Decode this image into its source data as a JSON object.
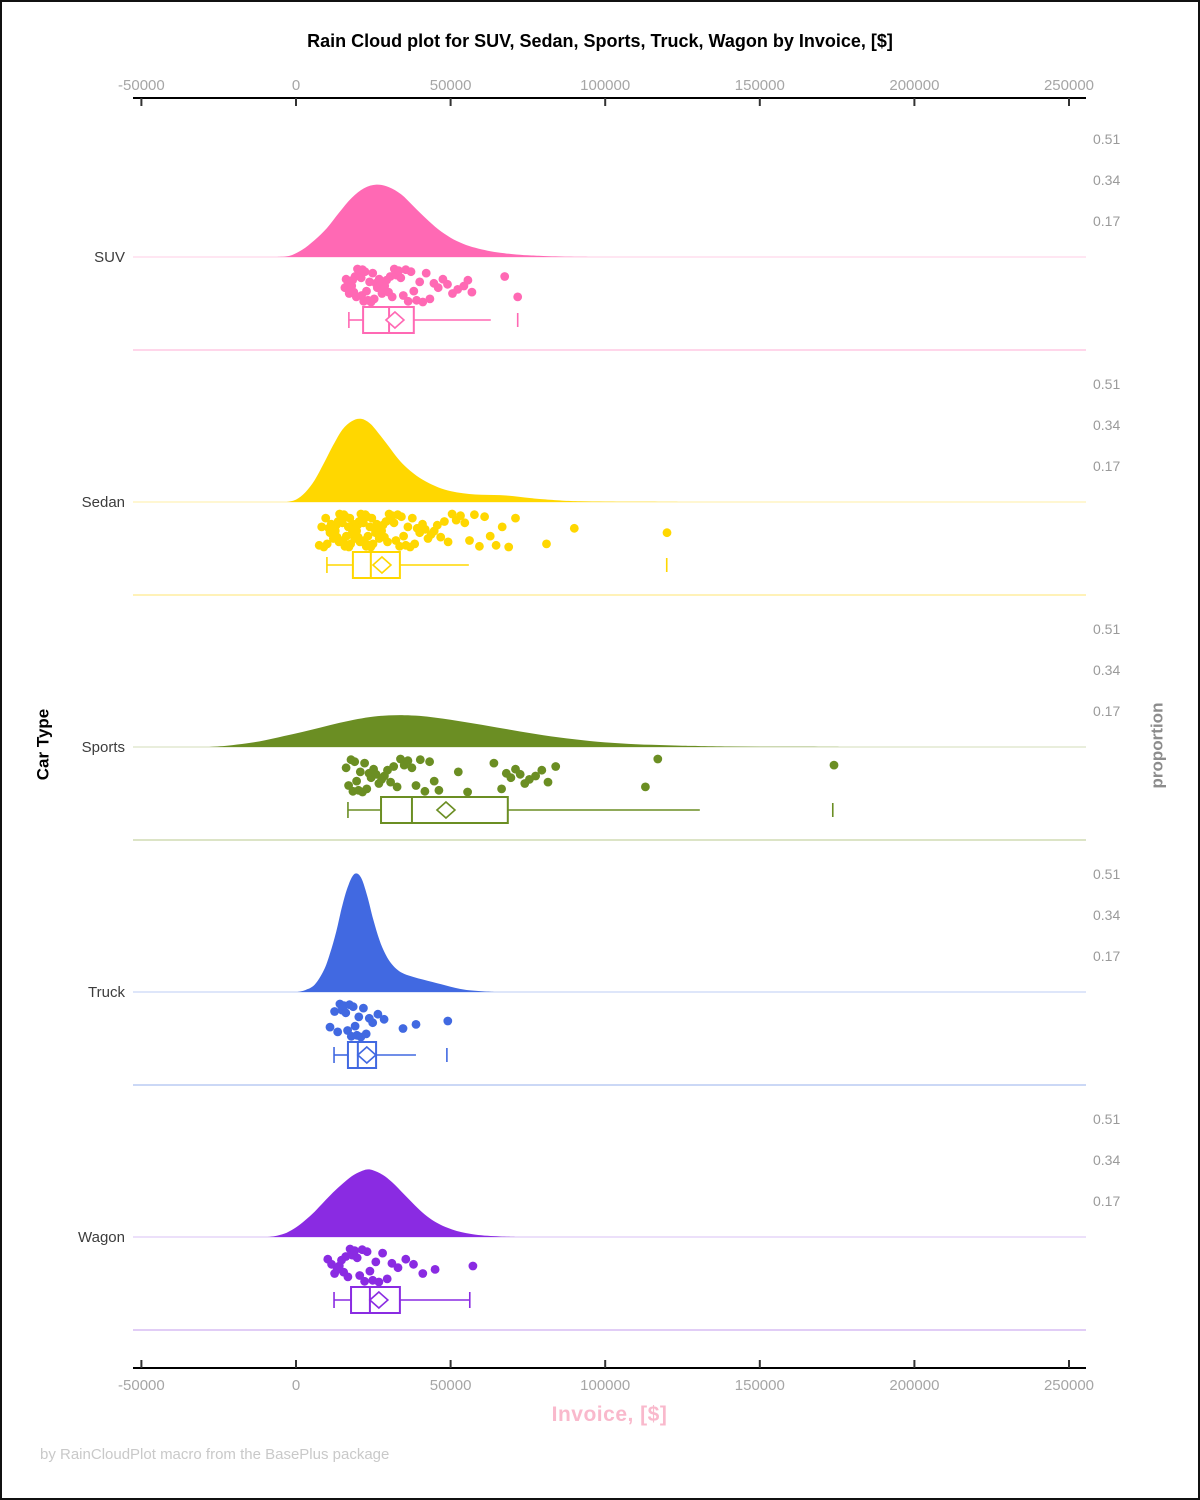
{
  "title": "Rain Cloud plot for SUV, Sedan, Sports, Truck, Wagon by Invoice, [$]",
  "footer": "by RainCloudPlot macro from the BasePlus package",
  "x_axis": {
    "label": "Invoice, [$]",
    "label_color": "#F9B9CC",
    "tick_values": [
      -50000,
      0,
      50000,
      100000,
      150000,
      200000,
      250000
    ]
  },
  "y_axis_left": {
    "label": "Car Type"
  },
  "y_axis_right": {
    "label": "proportion",
    "tick_values": [
      0.51,
      0.34,
      0.17
    ]
  },
  "chart_data": {
    "type": "raincloud (half-violin density + jittered strip + box plot per category)",
    "xlabel": "Invoice, [$]",
    "ylabel": "Car Type",
    "y2label": "proportion",
    "xlim": [
      -52700,
      255600
    ],
    "categories": [
      "SUV",
      "Sedan",
      "Sports",
      "Truck",
      "Wagon"
    ],
    "proportion_ticks_per_group": [
      0.51,
      0.34,
      0.17
    ],
    "jitter_pattern": [
      0.55,
      0.08,
      0.82,
      0.3,
      0.65,
      0.0,
      0.45,
      0.92,
      0.18,
      0.72,
      0.38,
      0.05,
      0.6,
      0.97,
      0.26,
      0.5,
      0.12,
      0.78,
      0.33,
      0.88,
      0.02,
      0.68,
      0.42,
      0.95,
      0.22
    ],
    "groups": [
      {
        "name": "SUV",
        "color": "#FF69B4",
        "tint": "#FFD6EA",
        "density": [
          [
            -6000,
            0
          ],
          [
            -2000,
            0.005
          ],
          [
            2000,
            0.03
          ],
          [
            6000,
            0.07
          ],
          [
            10000,
            0.12
          ],
          [
            14000,
            0.185
          ],
          [
            18000,
            0.245
          ],
          [
            22000,
            0.285
          ],
          [
            26000,
            0.3
          ],
          [
            30000,
            0.29
          ],
          [
            34000,
            0.26
          ],
          [
            38000,
            0.21
          ],
          [
            42000,
            0.16
          ],
          [
            46000,
            0.115
          ],
          [
            50000,
            0.08
          ],
          [
            54000,
            0.055
          ],
          [
            58000,
            0.038
          ],
          [
            62000,
            0.026
          ],
          [
            66000,
            0.018
          ],
          [
            70000,
            0.012
          ],
          [
            75000,
            0.007
          ],
          [
            80000,
            0.004
          ],
          [
            88000,
            0.001
          ],
          [
            95000,
            0
          ]
        ],
        "box": {
          "whisker_low": 17100,
          "q1": 21700,
          "median": 30100,
          "q3": 38100,
          "whisker_high": 63000,
          "mean": 32000,
          "outlier_ticks": [
            71700
          ],
          "right_cap": false
        },
        "points_x": [
          15800,
          16200,
          16800,
          17200,
          17600,
          18000,
          18300,
          18700,
          19100,
          19500,
          19900,
          20300,
          20700,
          21100,
          21200,
          21500,
          21900,
          22300,
          22800,
          23300,
          23800,
          24300,
          24800,
          25300,
          25800,
          26300,
          26900,
          27500,
          27800,
          28100,
          28700,
          29300,
          29900,
          30500,
          31100,
          31800,
          32500,
          33200,
          33900,
          34700,
          35500,
          36300,
          37200,
          38100,
          39000,
          40000,
          41000,
          42100,
          43300,
          44600,
          46000,
          47500,
          49000,
          50600,
          52300,
          54300,
          55600,
          56900,
          67500,
          71700
        ]
      },
      {
        "name": "Sedan",
        "color": "#FFD700",
        "tint": "#FFF2B8",
        "density": [
          [
            -3000,
            0
          ],
          [
            0,
            0.01
          ],
          [
            3000,
            0.04
          ],
          [
            6000,
            0.09
          ],
          [
            9000,
            0.16
          ],
          [
            12000,
            0.235
          ],
          [
            15000,
            0.3
          ],
          [
            18000,
            0.335
          ],
          [
            21000,
            0.345
          ],
          [
            24000,
            0.325
          ],
          [
            27000,
            0.28
          ],
          [
            30000,
            0.23
          ],
          [
            33000,
            0.18
          ],
          [
            36000,
            0.14
          ],
          [
            40000,
            0.1
          ],
          [
            44000,
            0.072
          ],
          [
            48000,
            0.052
          ],
          [
            52000,
            0.04
          ],
          [
            56000,
            0.033
          ],
          [
            60000,
            0.03
          ],
          [
            64000,
            0.029
          ],
          [
            68000,
            0.027
          ],
          [
            72000,
            0.022
          ],
          [
            76000,
            0.016
          ],
          [
            80000,
            0.011
          ],
          [
            86000,
            0.006
          ],
          [
            92000,
            0.003
          ],
          [
            100000,
            0.0015
          ],
          [
            110000,
            0.001
          ],
          [
            118000,
            0.0005
          ],
          [
            126000,
            0
          ]
        ],
        "box": {
          "whisker_low": 10000,
          "q1": 18400,
          "median": 24200,
          "q3": 33600,
          "whisker_high": 55900,
          "mean": 27800,
          "outlier_ticks": [
            119900
          ],
          "right_cap": false
        },
        "points_x": [
          7500,
          8300,
          9000,
          9600,
          10100,
          10600,
          11000,
          11400,
          11800,
          12100,
          12400,
          12700,
          13000,
          13300,
          13600,
          13900,
          14100,
          14400,
          14700,
          15000,
          15200,
          15500,
          15800,
          16000,
          16300,
          16600,
          16900,
          17100,
          17400,
          17700,
          18000,
          18200,
          18500,
          18800,
          19000,
          19300,
          19600,
          19900,
          20100,
          20400,
          20700,
          21000,
          21200,
          21500,
          21800,
          22100,
          22400,
          22700,
          23000,
          23300,
          23600,
          23900,
          24200,
          24500,
          24900,
          25300,
          25700,
          26100,
          26500,
          26900,
          27300,
          27700,
          28100,
          28600,
          29100,
          29600,
          30100,
          30600,
          31100,
          31700,
          32300,
          32900,
          33500,
          34100,
          34800,
          35500,
          36200,
          36900,
          37600,
          38400,
          39200,
          40000,
          40900,
          41800,
          42700,
          43700,
          44700,
          45700,
          46800,
          48000,
          49200,
          50500,
          51800,
          53200,
          54600,
          56100,
          57700,
          59300,
          61000,
          62800,
          64700,
          66700,
          68800,
          71000,
          81000,
          90000,
          120000
        ]
      },
      {
        "name": "Sports",
        "color": "#6B8E23",
        "tint": "#DCE4C6",
        "density": [
          [
            -28000,
            0
          ],
          [
            -22000,
            0.006
          ],
          [
            -16000,
            0.015
          ],
          [
            -10000,
            0.028
          ],
          [
            -4000,
            0.045
          ],
          [
            2000,
            0.062
          ],
          [
            8000,
            0.081
          ],
          [
            14000,
            0.1
          ],
          [
            20000,
            0.116
          ],
          [
            25000,
            0.126
          ],
          [
            30000,
            0.131
          ],
          [
            35000,
            0.132
          ],
          [
            40000,
            0.129
          ],
          [
            45000,
            0.122
          ],
          [
            50000,
            0.113
          ],
          [
            55000,
            0.103
          ],
          [
            60000,
            0.092
          ],
          [
            65000,
            0.081
          ],
          [
            70000,
            0.07
          ],
          [
            75000,
            0.059
          ],
          [
            80000,
            0.049
          ],
          [
            85000,
            0.04
          ],
          [
            90000,
            0.032
          ],
          [
            95000,
            0.025
          ],
          [
            100000,
            0.019
          ],
          [
            105000,
            0.015
          ],
          [
            110000,
            0.011
          ],
          [
            115000,
            0.009
          ],
          [
            120000,
            0.007
          ],
          [
            125000,
            0.005
          ],
          [
            130000,
            0.004
          ],
          [
            140000,
            0.002
          ],
          [
            150000,
            0.0012
          ],
          [
            160000,
            0.0008
          ],
          [
            170000,
            0.0005
          ],
          [
            178000,
            0
          ]
        ],
        "box": {
          "whisker_low": 16800,
          "q1": 27500,
          "median": 37500,
          "q3": 68500,
          "whisker_high": 130600,
          "mean": 48500,
          "outlier_ticks": [
            173600
          ],
          "right_cap": false
        },
        "points_x": [
          16200,
          17000,
          17800,
          18400,
          19000,
          19600,
          20200,
          20800,
          21500,
          22200,
          22900,
          23600,
          24300,
          25100,
          25900,
          26800,
          27700,
          28600,
          29600,
          30600,
          31600,
          32700,
          33800,
          35000,
          36200,
          37500,
          38800,
          40200,
          41700,
          43200,
          44700,
          46200,
          52500,
          55500,
          64000,
          66500,
          68000,
          69500,
          71000,
          72500,
          74000,
          75500,
          77500,
          79500,
          81500,
          84000,
          113000,
          117000,
          174000
        ]
      },
      {
        "name": "Truck",
        "color": "#4169E1",
        "tint": "#CBD8F6",
        "density": [
          [
            500,
            0
          ],
          [
            3000,
            0.008
          ],
          [
            6000,
            0.03
          ],
          [
            9000,
            0.09
          ],
          [
            11000,
            0.16
          ],
          [
            13000,
            0.25
          ],
          [
            15000,
            0.36
          ],
          [
            17000,
            0.445
          ],
          [
            19000,
            0.49
          ],
          [
            21000,
            0.475
          ],
          [
            23000,
            0.4
          ],
          [
            25000,
            0.3
          ],
          [
            27000,
            0.215
          ],
          [
            29000,
            0.155
          ],
          [
            31000,
            0.115
          ],
          [
            33000,
            0.09
          ],
          [
            35000,
            0.075
          ],
          [
            38000,
            0.062
          ],
          [
            41000,
            0.052
          ],
          [
            44000,
            0.042
          ],
          [
            47000,
            0.032
          ],
          [
            50000,
            0.022
          ],
          [
            53000,
            0.013
          ],
          [
            56000,
            0.007
          ],
          [
            60000,
            0.003
          ],
          [
            64000,
            0
          ]
        ],
        "box": {
          "whisker_low": 12300,
          "q1": 16800,
          "median": 20000,
          "q3": 25900,
          "whisker_high": 38800,
          "mean": 22900,
          "outlier_ticks": [
            48800
          ],
          "right_cap": false
        },
        "points_x": [
          11000,
          12500,
          13500,
          14200,
          14900,
          15500,
          16100,
          16700,
          17300,
          17900,
          18500,
          19100,
          19700,
          20300,
          21000,
          21800,
          22700,
          23700,
          24800,
          26500,
          28500,
          34600,
          38800,
          49100
        ]
      },
      {
        "name": "Wagon",
        "color": "#8A2BE2",
        "tint": "#E1CDF6",
        "density": [
          [
            -9000,
            0
          ],
          [
            -6000,
            0.006
          ],
          [
            -3000,
            0.018
          ],
          [
            0,
            0.04
          ],
          [
            3000,
            0.07
          ],
          [
            6000,
            0.105
          ],
          [
            9000,
            0.145
          ],
          [
            12000,
            0.185
          ],
          [
            15000,
            0.22
          ],
          [
            18000,
            0.252
          ],
          [
            21000,
            0.272
          ],
          [
            23000,
            0.28
          ],
          [
            25000,
            0.276
          ],
          [
            28000,
            0.258
          ],
          [
            31000,
            0.228
          ],
          [
            34000,
            0.19
          ],
          [
            37000,
            0.15
          ],
          [
            40000,
            0.112
          ],
          [
            43000,
            0.08
          ],
          [
            46000,
            0.056
          ],
          [
            49000,
            0.038
          ],
          [
            52000,
            0.025
          ],
          [
            55000,
            0.016
          ],
          [
            58000,
            0.01
          ],
          [
            62000,
            0.005
          ],
          [
            66000,
            0.002
          ],
          [
            71000,
            0
          ]
        ],
        "box": {
          "whisker_low": 12300,
          "q1": 17800,
          "median": 23900,
          "q3": 33600,
          "whisker_high": 56200,
          "mean": 26800,
          "outlier_ticks": [],
          "right_cap": true
        },
        "points_x": [
          10300,
          11500,
          12500,
          13300,
          14000,
          14700,
          15400,
          16100,
          16800,
          17500,
          18200,
          19000,
          19800,
          20600,
          21400,
          22200,
          23000,
          23900,
          24800,
          25800,
          26800,
          28000,
          29500,
          31000,
          33000,
          35500,
          38000,
          41000,
          45000,
          57200
        ]
      }
    ]
  }
}
